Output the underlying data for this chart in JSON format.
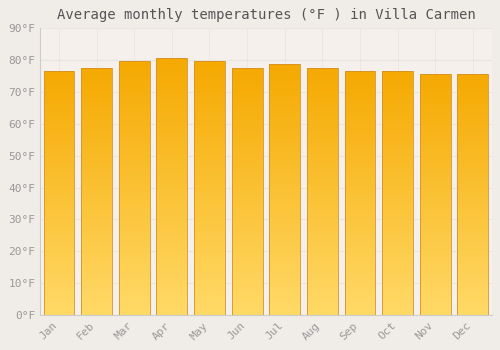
{
  "title": "Average monthly temperatures (°F ) in Villa Carmen",
  "months": [
    "Jan",
    "Feb",
    "Mar",
    "Apr",
    "May",
    "Jun",
    "Jul",
    "Aug",
    "Sep",
    "Oct",
    "Nov",
    "Dec"
  ],
  "values": [
    76.5,
    77.5,
    79.5,
    80.5,
    79.5,
    77.5,
    78.5,
    77.5,
    76.5,
    76.5,
    75.5,
    75.5
  ],
  "bar_color_top": "#F5A800",
  "bar_color_bottom": "#FFD966",
  "bar_edge_color": "#D4922A",
  "background_color": "#f0ece8",
  "plot_bg_color": "#f5f0ec",
  "ylim": [
    0,
    90
  ],
  "ytick_step": 10,
  "title_fontsize": 10,
  "tick_fontsize": 8,
  "grid_color": "#e8e4e0",
  "title_color": "#555555",
  "tick_color": "#999999"
}
